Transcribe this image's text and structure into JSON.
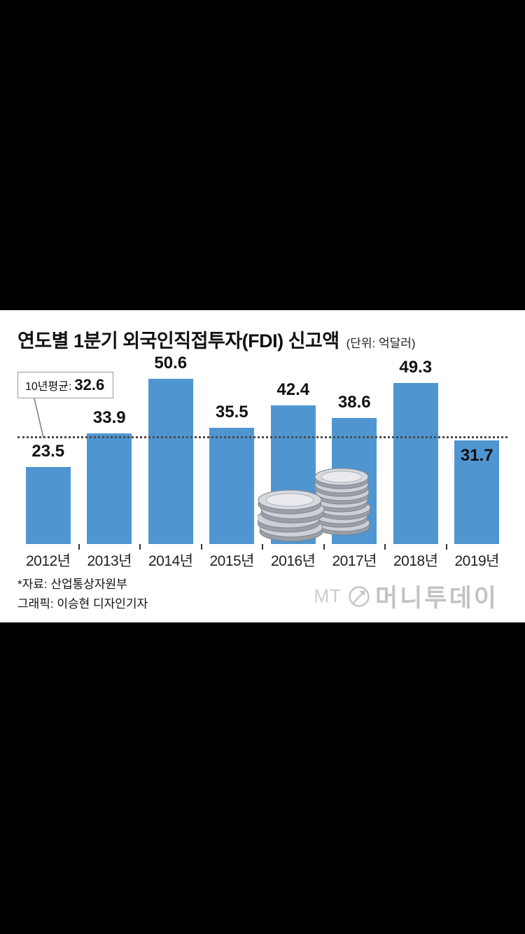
{
  "page": {
    "background": "#000000",
    "panel_background": "#ffffff"
  },
  "chart": {
    "title": "연도별 1분기 외국인직접투자(FDI) 신고액",
    "unit_label": "(단위: 억달러)",
    "average_prefix": "10년평균:",
    "average_value_label": "32.6",
    "bar_color": "#4f96d1",
    "average_line_color": "#4a4a4a"
  },
  "chart_data": {
    "type": "bar",
    "title": "연도별 1분기 외국인직접투자(FDI) 신고액",
    "unit": "억달러",
    "categories": [
      "2012년",
      "2013년",
      "2014년",
      "2015년",
      "2016년",
      "2017년",
      "2018년",
      "2019년"
    ],
    "values": [
      23.5,
      33.9,
      50.6,
      35.5,
      42.4,
      38.6,
      49.3,
      31.7
    ],
    "value_label_inside": [
      false,
      false,
      false,
      false,
      false,
      false,
      false,
      true
    ],
    "average_line": 32.6,
    "average_label": "10년평균: 32.6",
    "ylim": [
      0,
      52
    ],
    "grid": false,
    "legend": "none",
    "xlabel": "",
    "ylabel": ""
  },
  "footer": {
    "source": "*자료: 산업통상자원부",
    "credit": "그래픽: 이승현 디자인기자"
  },
  "logo": {
    "mt": "MT",
    "name": "머니투데이"
  }
}
